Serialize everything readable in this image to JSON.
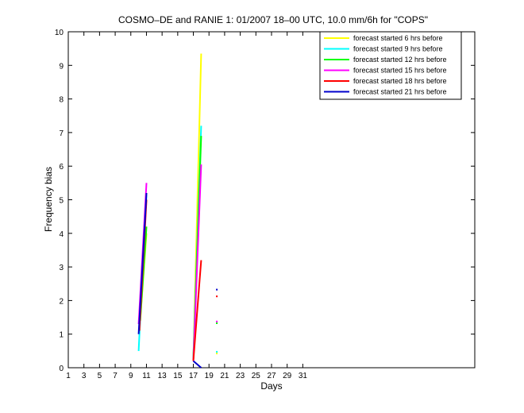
{
  "chart_data": {
    "type": "line",
    "title": "COSMO–DE and RANIE 1: 01/2007 18–00 UTC, 10.0 mm/6h for \"COPS\"",
    "xlabel": "Days",
    "ylabel": "Frequency bias",
    "xlim": [
      1,
      53
    ],
    "ylim": [
      0,
      10
    ],
    "xticks": [
      1,
      3,
      5,
      7,
      9,
      11,
      13,
      15,
      17,
      19,
      21,
      23,
      25,
      27,
      29,
      31
    ],
    "yticks": [
      0,
      1,
      2,
      3,
      4,
      5,
      6,
      7,
      8,
      9,
      10
    ],
    "legend_position": "top-right",
    "series": [
      {
        "name": "forecast started 6 hrs before",
        "color": "#ffff00",
        "segments": [
          [
            [
              10.1,
              1.1
            ],
            [
              11,
              4.0
            ]
          ],
          [
            [
              17,
              0.2
            ],
            [
              18,
              9.35
            ]
          ],
          [
            [
              20,
              0.4
            ],
            [
              20,
              0.45
            ]
          ]
        ]
      },
      {
        "name": "forecast started 9 hrs before",
        "color": "#00ffff",
        "segments": [
          [
            [
              10,
              0.5
            ],
            [
              11,
              5.2
            ]
          ],
          [
            [
              17,
              0.25
            ],
            [
              18,
              7.2
            ]
          ],
          [
            [
              20,
              0.45
            ],
            [
              20,
              0.5
            ]
          ]
        ]
      },
      {
        "name": "forecast started 12 hrs before",
        "color": "#00ff00",
        "segments": [
          [
            [
              10.2,
              1.4
            ],
            [
              11,
              4.2
            ]
          ],
          [
            [
              17,
              0.25
            ],
            [
              18,
              6.9
            ]
          ],
          [
            [
              20,
              1.3
            ],
            [
              20,
              1.35
            ]
          ]
        ]
      },
      {
        "name": "forecast started 15 hrs before",
        "color": "#ff00ff",
        "segments": [
          [
            [
              10,
              1.3
            ],
            [
              11,
              5.5
            ]
          ],
          [
            [
              17,
              0.2
            ],
            [
              18,
              6.05
            ]
          ],
          [
            [
              20,
              1.35
            ],
            [
              20,
              1.4
            ]
          ]
        ]
      },
      {
        "name": "forecast started 18 hrs before",
        "color": "#ff0000",
        "segments": [
          [
            [
              10.1,
              1.1
            ],
            [
              11,
              5.0
            ]
          ],
          [
            [
              17,
              0.2
            ],
            [
              18,
              3.2
            ]
          ],
          [
            [
              20,
              2.1
            ],
            [
              20,
              2.15
            ]
          ]
        ]
      },
      {
        "name": "forecast started 21 hrs before",
        "color": "#0000cc",
        "segments": [
          [
            [
              10,
              1.0
            ],
            [
              11,
              5.2
            ]
          ],
          [
            [
              17,
              0.2
            ],
            [
              18,
              0.0
            ]
          ],
          [
            [
              20,
              2.3
            ],
            [
              20,
              2.35
            ]
          ]
        ]
      }
    ]
  }
}
